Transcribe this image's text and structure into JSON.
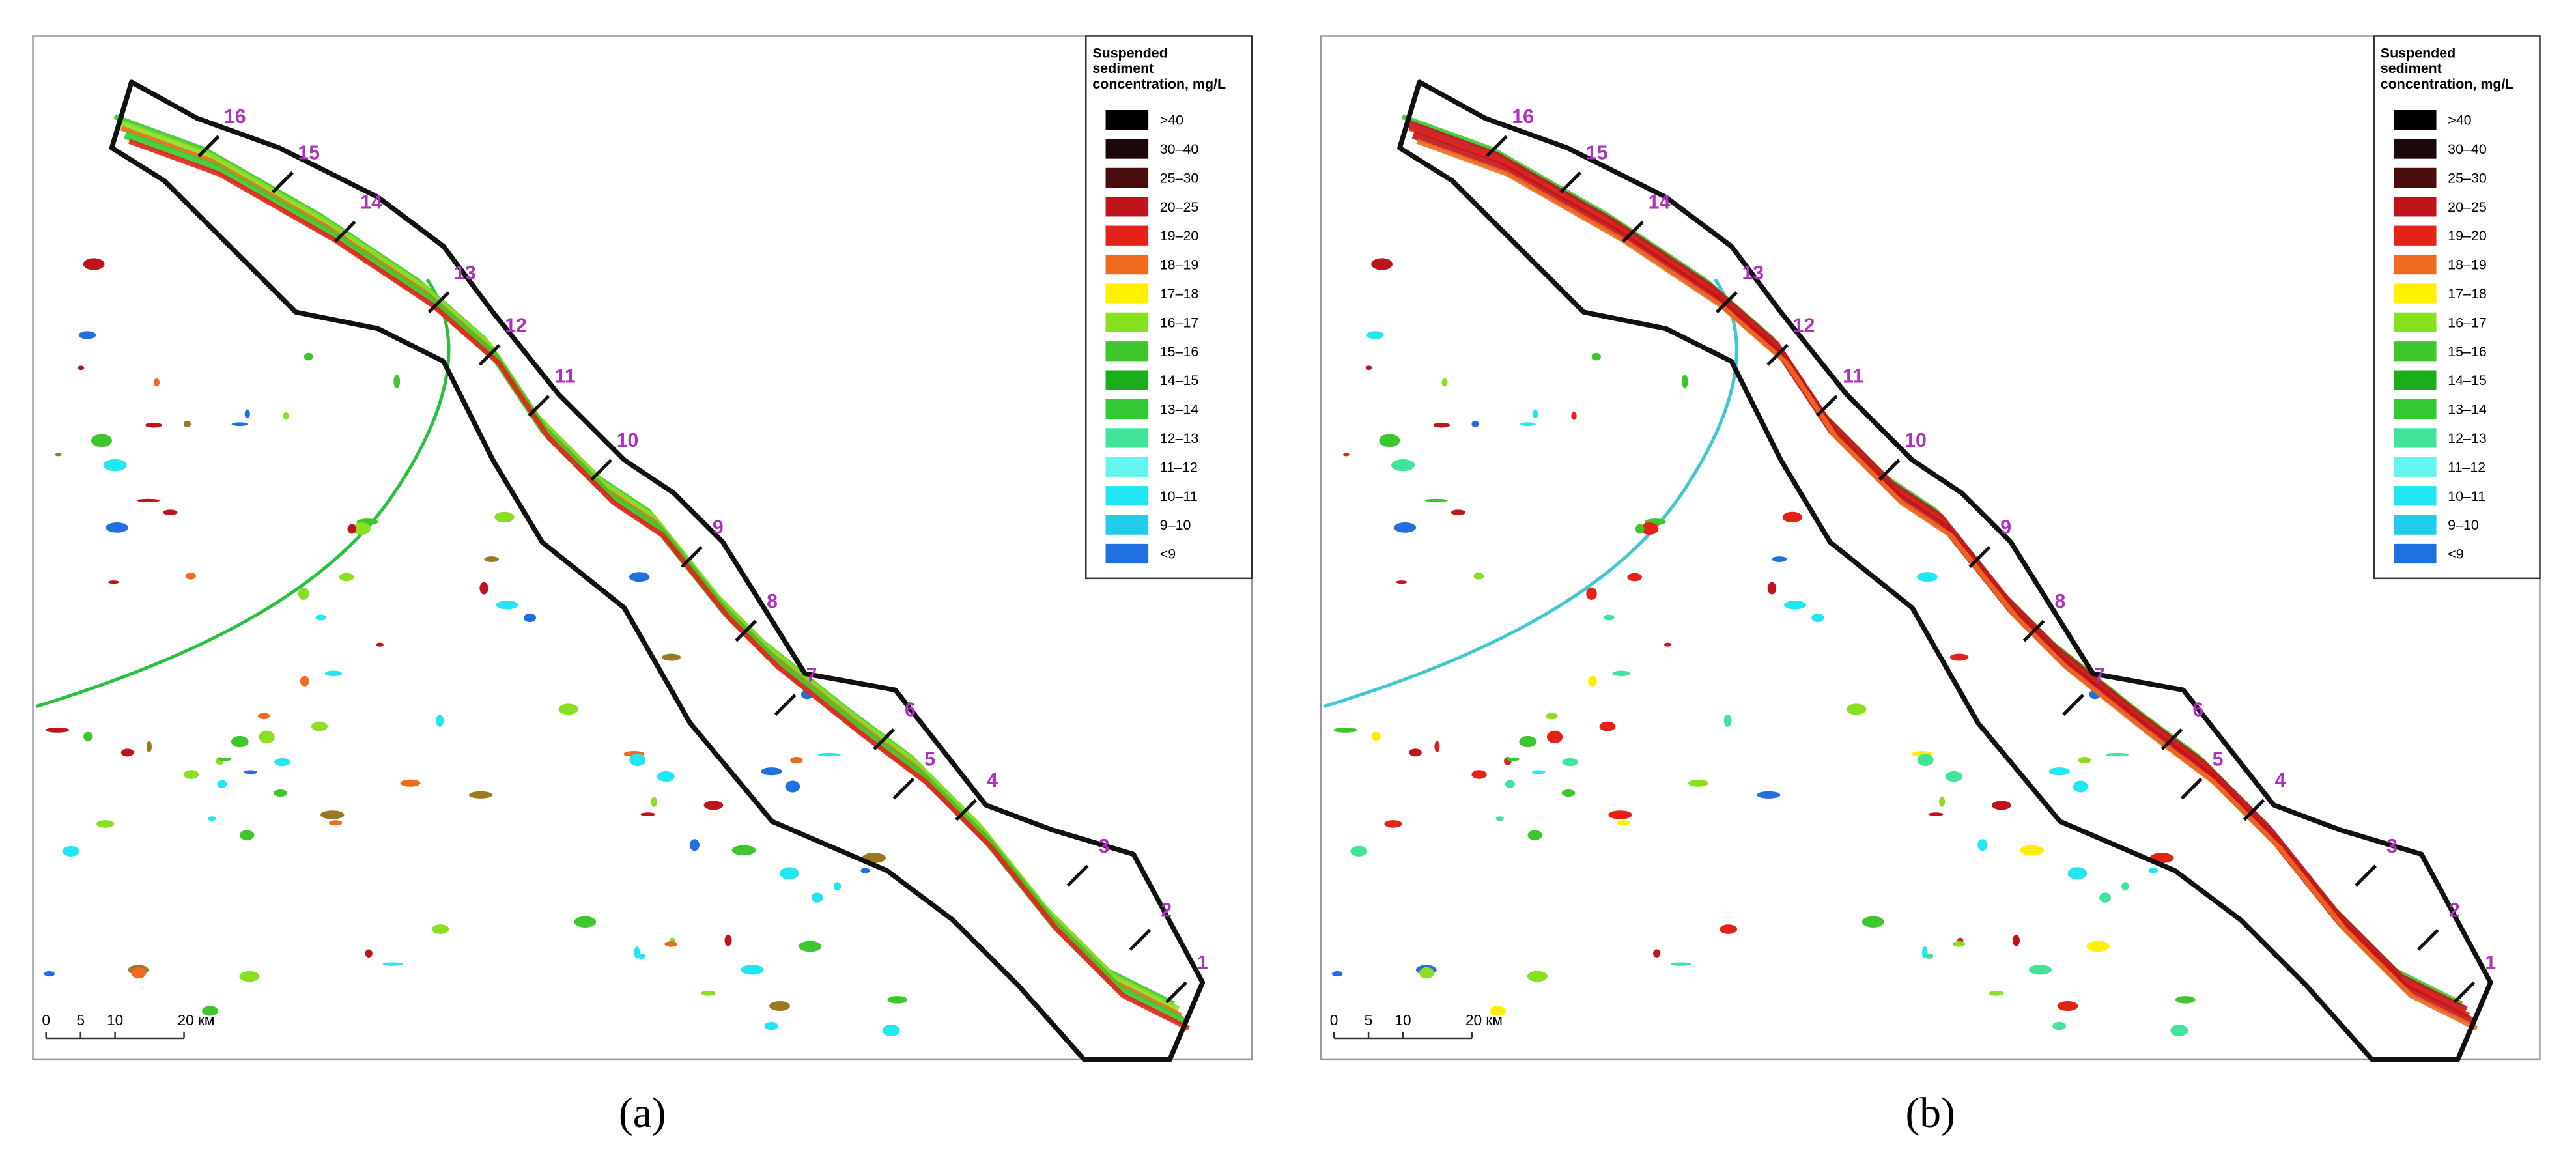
{
  "legend": {
    "title": [
      "Suspended",
      "sediment",
      "concentration, mg/L"
    ],
    "items": [
      {
        "label": ">40",
        "color": "#000000"
      },
      {
        "label": "30–40",
        "color": "#1c0808"
      },
      {
        "label": "25–30",
        "color": "#4a0c0c"
      },
      {
        "label": "20–25",
        "color": "#c0141c"
      },
      {
        "label": "19–20",
        "color": "#e42218"
      },
      {
        "label": "18–19",
        "color": "#f06a20"
      },
      {
        "label": "17–18",
        "color": "#fff000"
      },
      {
        "label": "16–17",
        "color": "#88e020"
      },
      {
        "label": "15–16",
        "color": "#3cc82c"
      },
      {
        "label": "14–15",
        "color": "#1aae1a"
      },
      {
        "label": "13–14",
        "color": "#34c834"
      },
      {
        "label": "12–13",
        "color": "#40e49a"
      },
      {
        "label": "11–12",
        "color": "#66f4f0"
      },
      {
        "label": "10–11",
        "color": "#22e6f2"
      },
      {
        "label": "9–10",
        "color": "#20cce8"
      },
      {
        "label": "<9",
        "color": "#2070e0"
      }
    ]
  },
  "sections": [
    "16",
    "15",
    "14",
    "13",
    "12",
    "11",
    "10",
    "9",
    "8",
    "7",
    "6",
    "5",
    "4",
    "3",
    "2",
    "1"
  ],
  "scale_bar": [
    "0",
    "5",
    "10",
    "20 км"
  ],
  "panels": [
    {
      "caption": "(a)"
    },
    {
      "caption": "(b)"
    }
  ]
}
